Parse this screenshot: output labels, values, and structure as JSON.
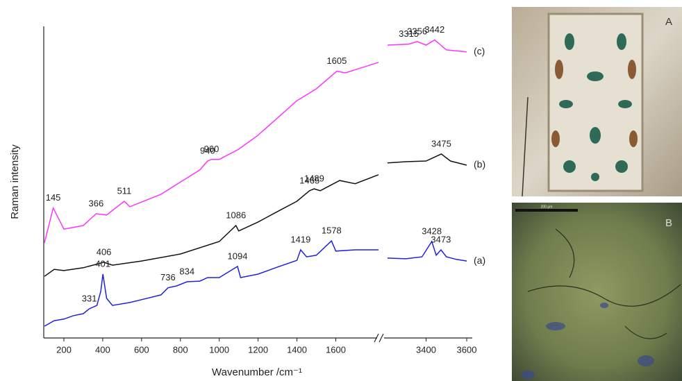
{
  "chart_data": {
    "type": "line",
    "y_label": "Raman intensity",
    "x_label": "Wavenumber /cm⁻¹",
    "xlim": [
      100,
      3600
    ],
    "xbreak": [
      1820,
      3200
    ],
    "ylim": [
      0,
      9.8
    ],
    "xticks": [
      200,
      400,
      600,
      800,
      1000,
      1200,
      1400,
      1600,
      3400,
      3600
    ],
    "series": [
      {
        "name": "(a)",
        "color": "#2020e0",
        "x": [
          100,
          150,
          200,
          250,
          300,
          330,
          370,
          390,
          401,
          420,
          450,
          540,
          600,
          700,
          736,
          780,
          834,
          900,
          940,
          1000,
          1094,
          1110,
          1200,
          1300,
          1400,
          1419,
          1450,
          1500,
          1578,
          1600,
          1700,
          1820,
          null,
          3210,
          3300,
          3380,
          3428,
          3450,
          3473,
          3500,
          3550,
          3600
        ],
        "values": [
          0.37,
          0.54,
          0.59,
          0.7,
          0.76,
          0.91,
          1.02,
          1.46,
          2.0,
          1.24,
          1.02,
          1.11,
          1.2,
          1.35,
          1.57,
          1.63,
          1.76,
          1.78,
          1.89,
          1.89,
          2.24,
          1.89,
          2.0,
          2.22,
          2.43,
          2.76,
          2.54,
          2.59,
          3.04,
          2.72,
          2.76,
          2.76,
          null,
          2.5,
          2.48,
          2.54,
          3.02,
          2.59,
          2.76,
          2.54,
          2.46,
          2.41
        ]
      },
      {
        "name": "(b)",
        "color": "#111111",
        "x": [
          100,
          150,
          200,
          300,
          406,
          450,
          600,
          800,
          1000,
          1086,
          1100,
          1200,
          1300,
          1400,
          1465,
          1489,
          1520,
          1620,
          1700,
          1820,
          null,
          3210,
          3300,
          3400,
          3475,
          3520,
          3600
        ],
        "values": [
          1.93,
          2.15,
          2.11,
          2.2,
          2.37,
          2.28,
          2.41,
          2.63,
          3.02,
          3.52,
          3.35,
          3.63,
          3.96,
          4.28,
          4.61,
          4.67,
          4.61,
          4.93,
          4.83,
          5.11,
          null,
          5.48,
          5.52,
          5.54,
          5.76,
          5.54,
          5.41
        ]
      },
      {
        "name": "(c)",
        "color": "#ff33ff",
        "x": [
          100,
          145,
          200,
          300,
          366,
          420,
          511,
          540,
          700,
          900,
          940,
          960,
          1000,
          1100,
          1200,
          1300,
          1400,
          1500,
          1605,
          1650,
          1820,
          null,
          3210,
          3315,
          3356,
          3400,
          3442,
          3500,
          3600
        ],
        "values": [
          2.98,
          4.07,
          3.41,
          3.52,
          3.89,
          3.85,
          4.28,
          4.11,
          4.5,
          5.26,
          5.54,
          5.59,
          5.59,
          5.91,
          6.35,
          6.89,
          7.43,
          7.8,
          8.35,
          8.3,
          8.63,
          null,
          9.17,
          9.2,
          9.28,
          9.17,
          9.33,
          9.02,
          8.96
        ]
      }
    ],
    "annotations": [
      {
        "label": "331",
        "x": 331,
        "series": 0
      },
      {
        "label": "401",
        "x": 401,
        "series": 0
      },
      {
        "label": "736",
        "x": 736,
        "series": 0
      },
      {
        "label": "834",
        "x": 834,
        "series": 0
      },
      {
        "label": "1094",
        "x": 1094,
        "series": 0
      },
      {
        "label": "1419",
        "x": 1419,
        "series": 0
      },
      {
        "label": "1578",
        "x": 1578,
        "series": 0
      },
      {
        "label": "3428",
        "x": 3428,
        "series": 0
      },
      {
        "label": "3473",
        "x": 3473,
        "series": 0
      },
      {
        "label": "406",
        "x": 406,
        "series": 1
      },
      {
        "label": "1086",
        "x": 1086,
        "series": 1
      },
      {
        "label": "1465",
        "x": 1465,
        "series": 1
      },
      {
        "label": "1489",
        "x": 1489,
        "series": 1
      },
      {
        "label": "3475",
        "x": 3475,
        "series": 1
      },
      {
        "label": "145",
        "x": 145,
        "series": 2
      },
      {
        "label": "366",
        "x": 366,
        "series": 2
      },
      {
        "label": "511",
        "x": 511,
        "series": 2
      },
      {
        "label": "940",
        "x": 940,
        "series": 2
      },
      {
        "label": "960",
        "x": 960,
        "series": 2
      },
      {
        "label": "1605",
        "x": 1605,
        "series": 2
      },
      {
        "label": "3315",
        "x": 3315,
        "series": 2
      },
      {
        "label": "3356",
        "x": 3356,
        "series": 2
      },
      {
        "label": "3442",
        "x": 3442,
        "series": 2
      }
    ]
  },
  "images": [
    {
      "label": "A"
    },
    {
      "label": "B",
      "scale_bar": "200 μm"
    }
  ]
}
